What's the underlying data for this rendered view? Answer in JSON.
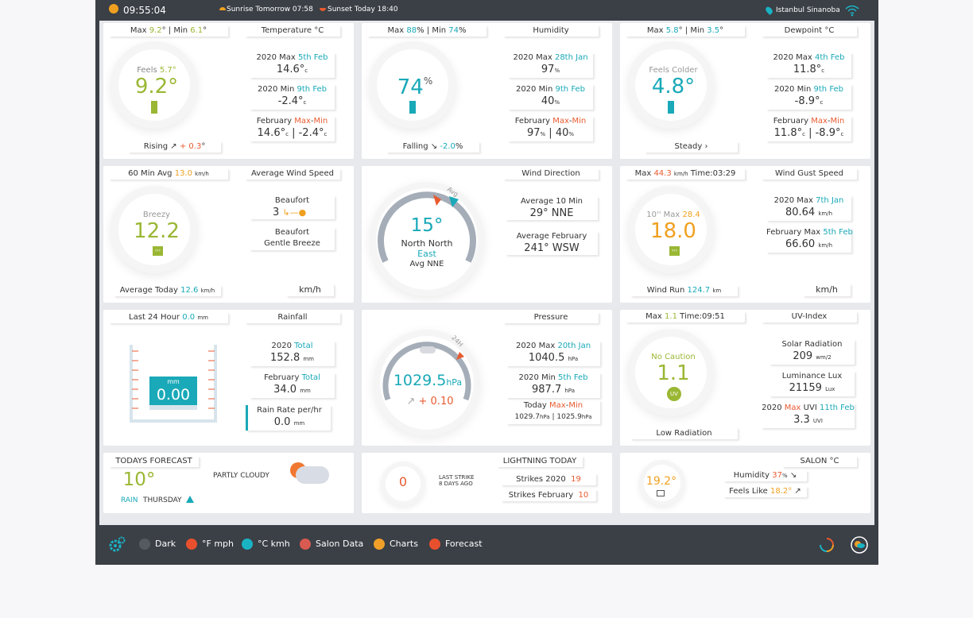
{
  "topbar": {
    "time": "09:55:04",
    "sunrise": "Sunrise Tomorrow 07:58",
    "sunset": "Sunset Today 18:40",
    "location": "Istanbul Sinanoba"
  },
  "temperature": {
    "title": "Temperature °C",
    "max_label": "Max",
    "max": "9.2",
    "min_label": "Min",
    "min": "6.1",
    "feels_label": "Feels",
    "feels": "5.7°",
    "value": "9.2°",
    "trend_label": "Rising",
    "trend": "+ 0.3",
    "year_max_label": "2020 Max",
    "year_max_date": "5th Feb",
    "year_max": "14.6°",
    "year_min_label": "2020 Min",
    "year_min_date": "9th Feb",
    "year_min": "-2.4°",
    "month": "February",
    "max_word": "Max",
    "min_word": "Min",
    "month_max": "14.6°",
    "month_min": "-2.4°",
    "unit": "c"
  },
  "humidity": {
    "title": "Humidity",
    "max_label": "Max",
    "max": "88",
    "min_label": "Min",
    "min": "74",
    "value": "74",
    "pct": "%",
    "trend_label": "Falling",
    "trend": "-2.0",
    "year_max_label": "2020 Max",
    "year_max_date": "28th Jan",
    "year_max": "97",
    "year_min_label": "2020 Min",
    "year_min_date": "9th Feb",
    "year_min": "40",
    "month": "February",
    "max_word": "Max",
    "min_word": "Min",
    "month_max": "97",
    "month_min": "40"
  },
  "dewpoint": {
    "title": "Dewpoint °C",
    "max_label": "Max",
    "max": "5.8",
    "min_label": "Min",
    "min": "3.5",
    "feels_label": "Feels Colder",
    "value": "4.8°",
    "trend_label": "Steady",
    "year_max_label": "2020 Max",
    "year_max_date": "4th Feb",
    "year_max": "11.8°",
    "year_min_label": "2020 Min",
    "year_min_date": "9th Feb",
    "year_min": "-8.9°",
    "month": "February",
    "max_word": "Max",
    "min_word": "Min",
    "month_max": "11.8°",
    "month_min": "-8.9°",
    "unit": "c"
  },
  "wind_speed": {
    "title": "Average Wind Speed",
    "avg_label": "60 Min Avg",
    "avg": "13.0",
    "unit": "km/h",
    "desc": "Breezy",
    "value": "12.2",
    "beaufort_label": "Beaufort",
    "beaufort": "3",
    "beaufort_desc": "Gentle Breeze",
    "today_label": "Average Today",
    "today": "12.6",
    "unit_label": "km/h"
  },
  "wind_dir": {
    "title": "Wind Direction",
    "avg_tag": "Avg",
    "degrees": "15°",
    "dir_1": "North North",
    "dir_2": "East",
    "avg_label": "Avg NNE",
    "avg10_label": "Average 10 Min",
    "avg10": "29°  NNE",
    "avgmonth_label": "Average February",
    "avgmonth": "241°  WSW"
  },
  "wind_gust": {
    "title": "Wind Gust Speed",
    "max_label": "Max",
    "max": "44.3",
    "unit": "km/h",
    "time": "Time:03:29",
    "ten_label": "10'' Max",
    "ten": "28.4",
    "value": "18.0",
    "year_label": "2020 Max",
    "year_date": "7th Jan",
    "year": "80.64",
    "month_label": "February Max",
    "month_date": "5th Feb",
    "month": "66.60",
    "run_label": "Wind Run",
    "run": "124.7",
    "run_unit": "km",
    "unit_label": "km/h"
  },
  "rainfall": {
    "title": "Rainfall",
    "last24_label": "Last 24 Hour",
    "last24": "0.0",
    "unit": "mm",
    "gauge_unit": "mm",
    "value": "0.00",
    "year_label": "2020",
    "total_word": "Total",
    "year": "152.8",
    "month_label": "February",
    "month": "34.0",
    "rate_label": "Rain Rate per/hr",
    "rate": "0.0"
  },
  "pressure": {
    "title": "Pressure",
    "tag": "24H",
    "value": "1029.5",
    "unit": "hPa",
    "trend": "+ 0.10",
    "year_max_label": "2020 Max",
    "year_max_date": "20th Jan",
    "year_max": "1040.5",
    "year_min_label": "2020 Min",
    "year_min_date": "5th Feb",
    "year_min": "987.7",
    "today_label": "Today",
    "max_word": "Max",
    "min_word": "Min",
    "today_max": "1029.7",
    "today_min": "1025.9"
  },
  "uv": {
    "title": "UV-Index",
    "max_label": "Max",
    "max": "1.1",
    "time": "Time:09:51",
    "caution": "No Caution",
    "value": "1.1",
    "badge": "UV",
    "low": "Low Radiation",
    "solar_label": "Solar Radiation",
    "solar": "209",
    "solar_unit": "wm/2",
    "lux_label": "Luminance Lux",
    "lux": "21159",
    "lux_unit": "Lux",
    "year_label": "2020",
    "max_word": "Max",
    "uvi_word": "UVI",
    "year_date": "11th Feb",
    "year": "3.3",
    "uvi_unit": "UVI"
  },
  "forecast": {
    "title": "TODAYS FORECAST",
    "temp": "10°",
    "cond": "PARTLY CLOUDY",
    "rain": "RAIN",
    "day": "THURSDAY"
  },
  "lightning": {
    "title": "LIGHTNING TODAY",
    "count": "0",
    "last_1": "LAST STRIKE",
    "last_2": "8 DAYS AGO",
    "year_label": "Strikes 2020",
    "year": "19",
    "month_label": "Strikes February",
    "month": "10"
  },
  "salon": {
    "title": "SALON °C",
    "temp": "19.2°",
    "hum_label": "Humidity",
    "hum": "37",
    "feels_label": "Feels Like",
    "feels": "18.2°"
  },
  "bottom": {
    "items": [
      "Dark",
      "°F mph",
      "°C kmh",
      "Salon Data",
      "Charts",
      "Forecast"
    ],
    "colors": [
      "#555a61",
      "#e8502d",
      "#19b3c4",
      "#d85a50",
      "#f0a028",
      "#e8502d"
    ]
  },
  "colors": {
    "green": "#9ab734",
    "orange": "#f0a020",
    "red": "#e85a30",
    "teal": "#19a9b8"
  }
}
